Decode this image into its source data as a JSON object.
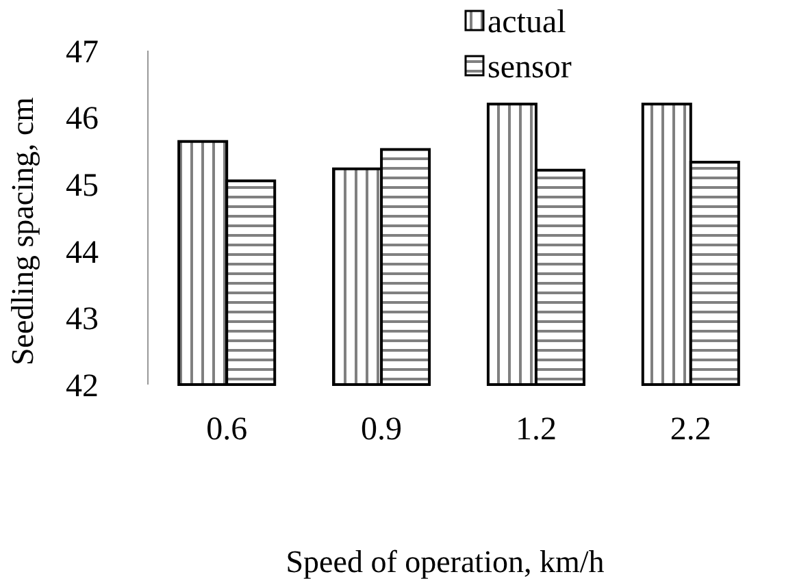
{
  "chart_data": {
    "type": "bar",
    "xlabel": "Speed of operation, km/h",
    "ylabel": "Seedling spacing, cm",
    "categories": [
      "0.6",
      "0.9",
      "1.2",
      "2.2"
    ],
    "series": [
      {
        "name": "actual",
        "color": "#000000",
        "values": [
          45.64,
          45.23,
          46.2,
          46.2
        ]
      },
      {
        "name": "sensor",
        "color": "#000000",
        "values": [
          45.05,
          45.52,
          45.21,
          45.33
        ]
      }
    ],
    "ylim": [
      42,
      47
    ],
    "yticks": [
      42,
      43,
      44,
      45,
      46,
      47
    ],
    "grid": false,
    "legend": "top right"
  }
}
